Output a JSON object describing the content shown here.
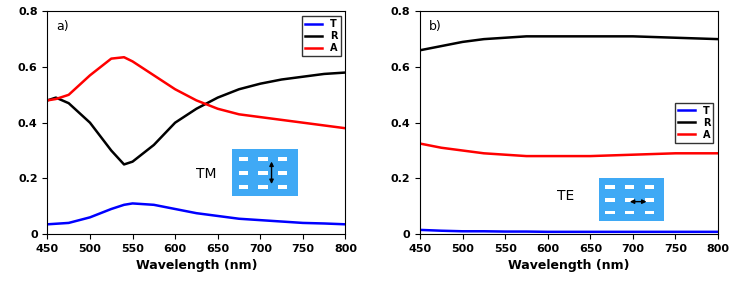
{
  "chart_data": [
    {
      "type": "line",
      "xlabel": "Wavelength (nm)",
      "x": [
        450,
        460,
        475,
        500,
        525,
        540,
        550,
        575,
        600,
        625,
        650,
        675,
        700,
        725,
        750,
        775,
        800
      ],
      "series": [
        {
          "name": "T",
          "color": "#0000ff",
          "values": [
            0.035,
            0.037,
            0.04,
            0.06,
            0.09,
            0.105,
            0.11,
            0.105,
            0.09,
            0.075,
            0.065,
            0.055,
            0.05,
            0.045,
            0.04,
            0.038,
            0.035
          ]
        },
        {
          "name": "R",
          "color": "#000000",
          "values": [
            0.48,
            0.49,
            0.47,
            0.4,
            0.3,
            0.25,
            0.26,
            0.32,
            0.4,
            0.45,
            0.49,
            0.52,
            0.54,
            0.555,
            0.565,
            0.575,
            0.58
          ]
        },
        {
          "name": "A",
          "color": "#ff0000",
          "values": [
            0.48,
            0.485,
            0.5,
            0.57,
            0.63,
            0.635,
            0.62,
            0.57,
            0.52,
            0.48,
            0.45,
            0.43,
            0.42,
            0.41,
            0.4,
            0.39,
            0.38
          ]
        }
      ],
      "xlim": [
        450,
        800
      ],
      "xticks": [
        450,
        500,
        550,
        600,
        650,
        700,
        750,
        800
      ],
      "ylim": [
        0,
        0.8
      ],
      "yticks": [
        0,
        0.2,
        0.4,
        0.6,
        0.8
      ],
      "legend": "upper right",
      "annotations": [
        "a)",
        "TM"
      ]
    },
    {
      "type": "line",
      "xlabel": "Wavelength (nm)",
      "x": [
        450,
        475,
        500,
        525,
        550,
        575,
        600,
        650,
        700,
        750,
        800
      ],
      "series": [
        {
          "name": "T",
          "color": "#0000ff",
          "values": [
            0.015,
            0.012,
            0.01,
            0.01,
            0.009,
            0.009,
            0.008,
            0.008,
            0.008,
            0.008,
            0.008
          ]
        },
        {
          "name": "R",
          "color": "#000000",
          "values": [
            0.66,
            0.675,
            0.69,
            0.7,
            0.705,
            0.71,
            0.71,
            0.71,
            0.71,
            0.705,
            0.7
          ]
        },
        {
          "name": "A",
          "color": "#ff0000",
          "values": [
            0.325,
            0.31,
            0.3,
            0.29,
            0.285,
            0.28,
            0.28,
            0.28,
            0.285,
            0.29,
            0.29
          ]
        }
      ],
      "xlim": [
        450,
        800
      ],
      "xticks": [
        450,
        500,
        550,
        600,
        650,
        700,
        750,
        800
      ],
      "ylim": [
        0,
        0.8
      ],
      "yticks": [
        0,
        0.2,
        0.4,
        0.6,
        0.8
      ],
      "legend": "center right",
      "annotations": [
        "b)",
        "TE"
      ]
    }
  ]
}
